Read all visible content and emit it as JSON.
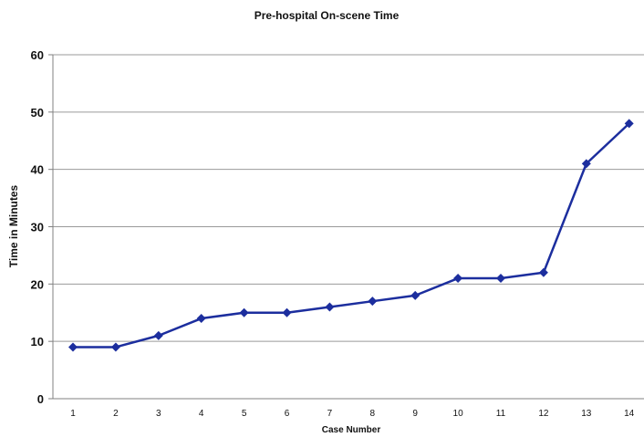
{
  "chart_data": {
    "type": "line",
    "title": "Pre-hospital On-scene Time",
    "xlabel": "Case Number",
    "ylabel": "Time in Minutes",
    "categories": [
      "1",
      "2",
      "3",
      "4",
      "5",
      "6",
      "7",
      "8",
      "9",
      "10",
      "11",
      "12",
      "13",
      "14"
    ],
    "series": [
      {
        "values": [
          9,
          9,
          11,
          14,
          15,
          15,
          16,
          17,
          18,
          21,
          21,
          22,
          41,
          48
        ],
        "color": "#1c2e9e",
        "marker": "diamond"
      }
    ],
    "ylim": [
      0,
      60
    ],
    "yticks": [
      0,
      10,
      20,
      30,
      40,
      50,
      60
    ],
    "grid": true,
    "legend": "none"
  }
}
